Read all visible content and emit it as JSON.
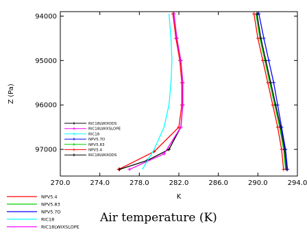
{
  "chart_data": {
    "type": "line",
    "title": "Air temperature (K)",
    "xlabel": "K",
    "ylabel": "Z (Pa)",
    "xlim": [
      270,
      294
    ],
    "ylim": [
      97600,
      93900
    ],
    "y_reversed": true,
    "grid": false,
    "xticks": [
      "270.0",
      "274.0",
      "278.0",
      "282.0",
      "286.0",
      "290.0",
      "294.0"
    ],
    "xtick_values": [
      270,
      274,
      278,
      282,
      286,
      290,
      294
    ],
    "yticks": [
      "94000",
      "95000",
      "96000",
      "97000"
    ],
    "ytick_values": [
      94000,
      95000,
      96000,
      97000
    ],
    "inset_legend": {
      "placement": "center-left",
      "entries": [
        {
          "label": "RIC18LWIXODS",
          "color": "#000000"
        },
        {
          "label": "RIC18LWIXSLOPE",
          "color": "#ff00ff"
        },
        {
          "label": "RIC18",
          "color": "#00ffff"
        },
        {
          "label": "NPV5.7D",
          "color": "#0000ff"
        },
        {
          "label": "NPV5.83",
          "color": "#00cc00"
        },
        {
          "label": "NPV5.4",
          "color": "#ff0000"
        },
        {
          "label": "RIC18LWIXODS",
          "color": "#000000"
        }
      ]
    },
    "bottom_legend": {
      "placement": "bottom-left",
      "entries": [
        {
          "label": "NPV5.4",
          "color": "#ff0000"
        },
        {
          "label": "NPV5.83",
          "color": "#00cc00"
        },
        {
          "label": "NPV5.7D",
          "color": "#0000ff"
        },
        {
          "label": "RIC18",
          "color": "#00ffff"
        },
        {
          "label": "RIC18LWIXSLOPE",
          "color": "#ff00ff"
        }
      ]
    },
    "series": [
      {
        "color": "#ff0000",
        "markers": true,
        "x": [
          281.4,
          281.7,
          282.1,
          282.3,
          282.3,
          282.0,
          279.5,
          275.9
        ],
        "y": [
          93950,
          94500,
          95000,
          95500,
          96000,
          96500,
          97050,
          97450
        ]
      },
      {
        "color": "#000000",
        "markers": true,
        "x": [
          281.5,
          281.8,
          282.2,
          282.4,
          282.4,
          282.2,
          281.0,
          278.8,
          276.0
        ],
        "y": [
          93950,
          94500,
          95000,
          95500,
          96000,
          96500,
          97000,
          97250,
          97450
        ]
      },
      {
        "color": "#ff00ff",
        "markers": true,
        "x": [
          281.5,
          281.8,
          282.2,
          282.4,
          282.4,
          282.2,
          280.5,
          277.0
        ],
        "y": [
          93950,
          94500,
          95000,
          95500,
          96000,
          96500,
          97100,
          97450
        ]
      },
      {
        "color": "#00ffff",
        "markers": false,
        "x": [
          281.0,
          281.2,
          281.3,
          281.2,
          281.0,
          280.5,
          279.5,
          278.3
        ],
        "y": [
          93950,
          94500,
          95000,
          95500,
          96000,
          96500,
          97000,
          97450
        ]
      },
      {
        "color": "#ff0000",
        "markers": true,
        "x": [
          289.6,
          290.0,
          290.5,
          291.0,
          291.5,
          292.0,
          292.4,
          292.6
        ],
        "y": [
          93950,
          94500,
          95000,
          95500,
          96000,
          96500,
          97000,
          97450
        ]
      },
      {
        "color": "#00cc00",
        "markers": false,
        "x": [
          289.8,
          290.2,
          290.7,
          291.2,
          291.7,
          292.2,
          292.6,
          292.8
        ],
        "y": [
          93950,
          94500,
          95000,
          95500,
          96000,
          96500,
          97000,
          97450
        ]
      },
      {
        "color": "#000000",
        "markers": true,
        "x": [
          289.9,
          290.3,
          290.8,
          291.3,
          291.8,
          292.3,
          292.7,
          292.9
        ],
        "y": [
          93950,
          94500,
          95000,
          95500,
          96000,
          96500,
          97000,
          97450
        ]
      },
      {
        "color": "#0000ff",
        "markers": true,
        "x": [
          290.1,
          290.6,
          291.1,
          291.6,
          292.0,
          292.4,
          292.8,
          293.0
        ],
        "y": [
          93950,
          94500,
          95000,
          95500,
          96000,
          96500,
          97000,
          97450
        ]
      }
    ]
  }
}
